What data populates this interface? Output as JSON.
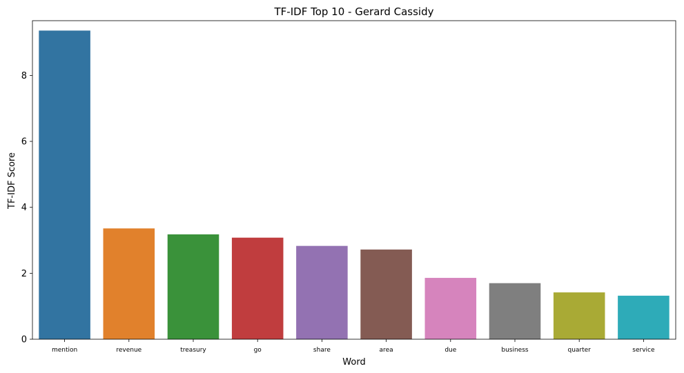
{
  "chart_data": {
    "type": "bar",
    "title": "TF-IDF Top 10 - Gerard Cassidy",
    "xlabel": "Word",
    "ylabel": "TF-IDF Score",
    "categories": [
      "mention",
      "revenue",
      "treasury",
      "go",
      "share",
      "area",
      "due",
      "business",
      "quarter",
      "service"
    ],
    "values": [
      9.36,
      3.36,
      3.18,
      3.08,
      2.83,
      2.72,
      1.86,
      1.7,
      1.42,
      1.32
    ],
    "colors": [
      "#3274a1",
      "#e1812c",
      "#3a923a",
      "#c03d3e",
      "#9372b2",
      "#845b53",
      "#d684bd",
      "#7f7f7f",
      "#a9aa35",
      "#2eabb8"
    ],
    "ylim": [
      0,
      9.66
    ],
    "yticks": [
      0,
      2,
      4,
      6,
      8
    ],
    "grid": false
  }
}
